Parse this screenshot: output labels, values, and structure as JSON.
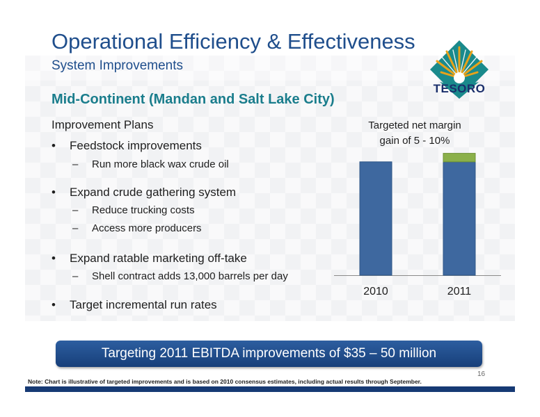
{
  "slide": {
    "title": "Operational Efficiency & Effectiveness",
    "subtitle": "System Improvements",
    "section_heading": "Mid-Continent (Mandan and Salt Lake City)",
    "logo_text": "TESORO",
    "page_number": "16"
  },
  "plans": {
    "heading": "Improvement Plans",
    "bullet_symbol": "•",
    "dash_symbol": "–",
    "bullets": [
      {
        "text": "Feedstock improvements",
        "subs": [
          "Run more black wax crude oil"
        ]
      },
      {
        "text": "Expand crude gathering system",
        "subs": [
          "Reduce trucking costs",
          "Access more producers"
        ]
      },
      {
        "text": "Expand ratable marketing off-take",
        "subs": [
          "Shell contract adds 13,000 barrels per day"
        ]
      },
      {
        "text": "Target incremental run rates",
        "subs": []
      }
    ]
  },
  "chart_data": {
    "type": "bar",
    "title": "Targeted net margin gain of 5 - 10%",
    "title_lines": [
      "Targeted net margin",
      "gain of 5 - 10%"
    ],
    "categories": [
      "2010",
      "2011"
    ],
    "series": [
      {
        "values": [
          100,
          100
        ],
        "color": "#3e689f"
      },
      {
        "values": [
          0,
          7.5
        ],
        "color": "#8bb04a"
      }
    ],
    "ylim": [
      0,
      114
    ],
    "grid": false,
    "legend": "none"
  },
  "banner": {
    "text": "Targeting 2011 EBITDA improvements of $35 – 50 million"
  },
  "footer": {
    "note": "Note:  Chart is illustrative of targeted improvements and is based on 2010 consensus estimates, including actual results through September."
  },
  "colors": {
    "title_blue": "#1f4e8c",
    "section_teal": "#1a7d8c",
    "bar_blue": "#3e689f",
    "bar_green": "#8bb04a",
    "banner_navy": "#173f7a",
    "logo_teal": "#1a8a8c",
    "logo_gold": "#e8a21a"
  }
}
